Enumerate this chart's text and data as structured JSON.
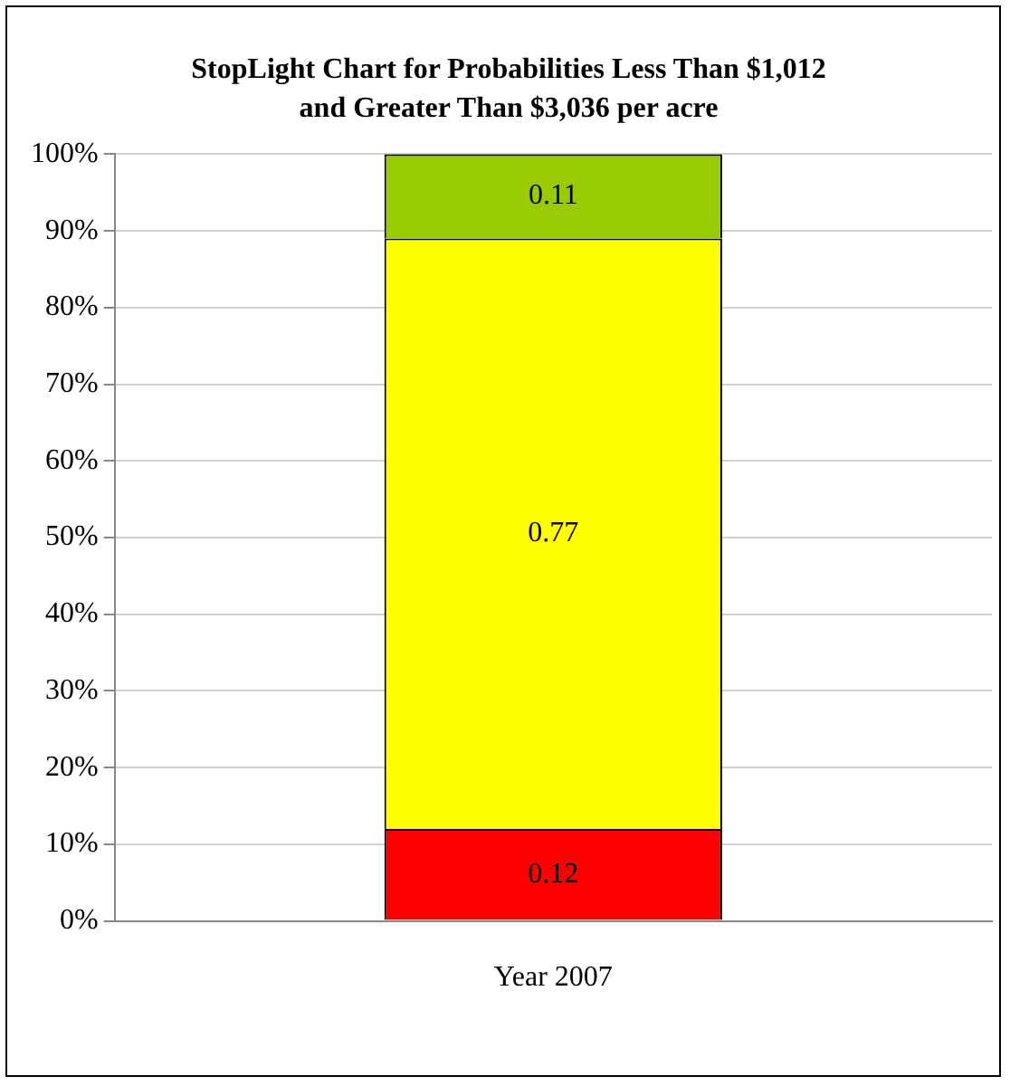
{
  "chart_data": {
    "type": "bar",
    "title": "StopLight Chart for Probabilities Less Than $1,012 and Greater Than $3,036 per acre",
    "categories": [
      "Year 2007"
    ],
    "series": [
      {
        "color": "#ff0000",
        "values": [
          0.12
        ]
      },
      {
        "color": "#ffff00",
        "values": [
          0.77
        ]
      },
      {
        "color": "#99cc00",
        "values": [
          0.11
        ]
      }
    ],
    "stacked": true,
    "data_labels": true,
    "legend": false,
    "grid": "y",
    "ylim": [
      0,
      1
    ],
    "yticks": [
      {
        "value": 0,
        "label": "0%"
      },
      {
        "value": 0.1,
        "label": "10%"
      },
      {
        "value": 0.2,
        "label": "20%"
      },
      {
        "value": 0.3,
        "label": "30%"
      },
      {
        "value": 0.4,
        "label": "40%"
      },
      {
        "value": 0.5,
        "label": "50%"
      },
      {
        "value": 0.6,
        "label": "60%"
      },
      {
        "value": 0.7,
        "label": "70%"
      },
      {
        "value": 0.8,
        "label": "80%"
      },
      {
        "value": 0.9,
        "label": "90%"
      },
      {
        "value": 1,
        "label": "100%"
      }
    ]
  }
}
